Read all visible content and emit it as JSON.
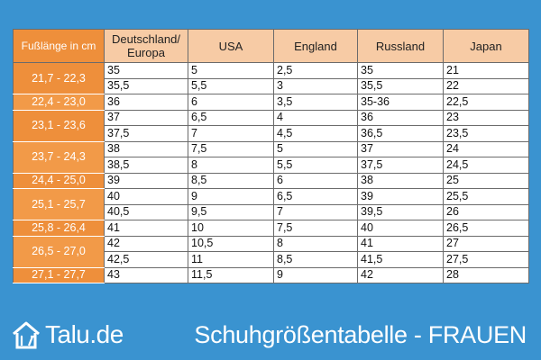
{
  "table": {
    "corner_header": "Fußlänge in cm",
    "headers": [
      "Deutschland/ Europa",
      "USA",
      "England",
      "Russland",
      "Japan"
    ],
    "groups": [
      {
        "foot": "21,7 - 22,3",
        "rows": [
          [
            "35",
            "5",
            "2,5",
            "35",
            "21"
          ],
          [
            "35,5",
            "5,5",
            "3",
            "35,5",
            "22"
          ]
        ]
      },
      {
        "foot": "22,4 - 23,0",
        "rows": [
          [
            "36",
            "6",
            "3,5",
            "35-36",
            "22,5"
          ]
        ]
      },
      {
        "foot": "23,1 - 23,6",
        "rows": [
          [
            "37",
            "6,5",
            "4",
            "36",
            "23"
          ],
          [
            "37,5",
            "7",
            "4,5",
            "36,5",
            "23,5"
          ]
        ]
      },
      {
        "foot": "23,7 - 24,3",
        "rows": [
          [
            "38",
            "7,5",
            "5",
            "37",
            "24"
          ],
          [
            "38,5",
            "8",
            "5,5",
            "37,5",
            "24,5"
          ]
        ]
      },
      {
        "foot": "24,4 - 25,0",
        "rows": [
          [
            "39",
            "8,5",
            "6",
            "38",
            "25"
          ]
        ]
      },
      {
        "foot": "25,1 - 25,7",
        "rows": [
          [
            "40",
            "9",
            "6,5",
            "39",
            "25,5"
          ],
          [
            "40,5",
            "9,5",
            "7",
            "39,5",
            "26"
          ]
        ]
      },
      {
        "foot": "25,8 - 26,4",
        "rows": [
          [
            "41",
            "10",
            "7,5",
            "40",
            "26,5"
          ]
        ]
      },
      {
        "foot": "26,5 - 27,0",
        "rows": [
          [
            "42",
            "10,5",
            "8",
            "41",
            "27"
          ],
          [
            "42,5",
            "11",
            "8,5",
            "41,5",
            "27,5"
          ]
        ]
      },
      {
        "foot": "27,1 - 27,7",
        "rows": [
          [
            "43",
            "11,5",
            "9",
            "42",
            "28"
          ]
        ]
      }
    ]
  },
  "logo": {
    "text": "Talu.de",
    "icon": "house-tools-icon"
  },
  "caption": "Schuhgrößentabelle - FRAUEN",
  "colors": {
    "background": "#3a93d0",
    "orange": "#ee8f3b",
    "peach": "#f7cba5"
  }
}
